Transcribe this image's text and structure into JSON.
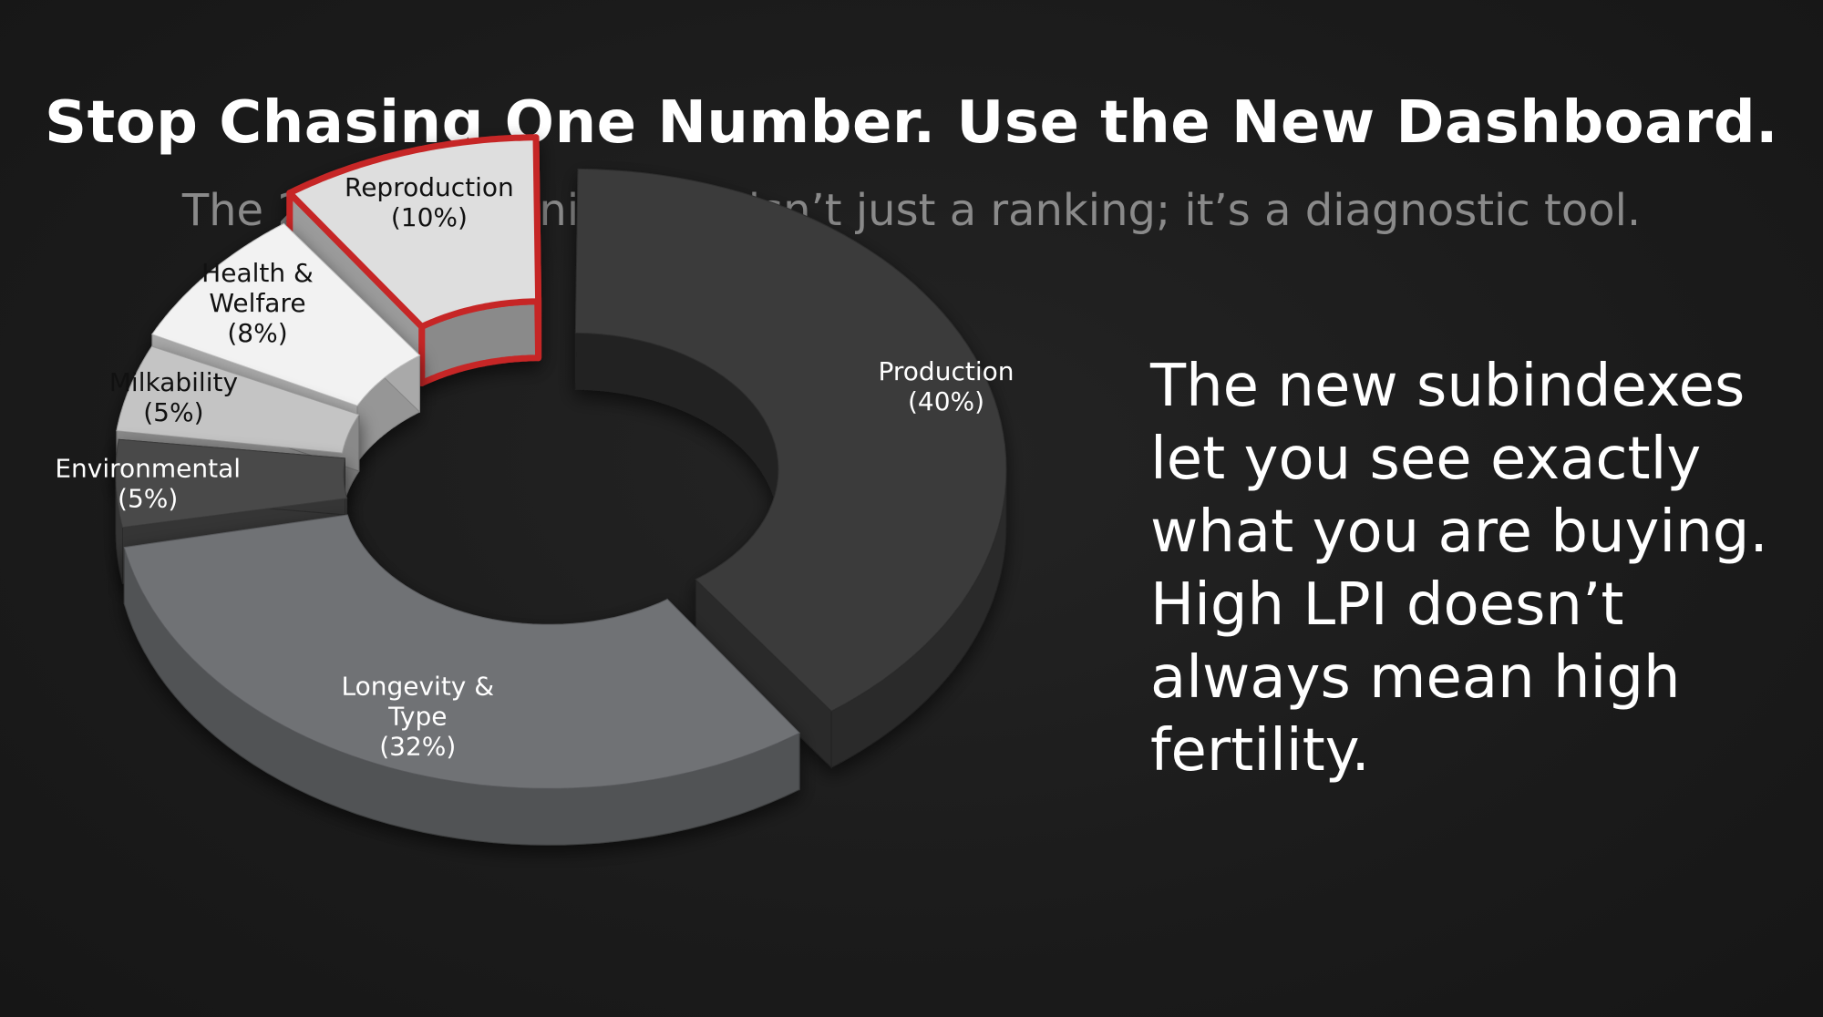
{
  "slide": {
    "title": "Stop Chasing One Number. Use the New Dashboard.",
    "subtitle": "The 2025 Modernized LPI isn’t just a ranking; it’s a diagnostic tool.",
    "body_text": "The new subindexes let you see exactly what you are buying. High LPI doesn’t always mean high fertility."
  },
  "chart_data": {
    "type": "pie",
    "style": "3d-exploded-donut",
    "categories": [
      "Production",
      "Longevity & Type",
      "Environmental",
      "Milkability",
      "Health & Welfare",
      "Reproduction"
    ],
    "values": [
      40,
      32,
      5,
      5,
      8,
      10
    ],
    "labels": [
      [
        "Production",
        "(40%)"
      ],
      [
        "Longevity &",
        "Type",
        "(32%)"
      ],
      [
        "Environmental",
        "(5%)"
      ],
      [
        "Milkability",
        "(5%)"
      ],
      [
        "Health &",
        "Welfare",
        "(8%)"
      ],
      [
        "Reproduction",
        "(10%)"
      ]
    ],
    "colors": [
      "#3a3a3a",
      "#707275",
      "#4a4a4a",
      "#c4c4c4",
      "#f2f2f2",
      "#dedede"
    ],
    "label_colors": [
      "#ffffff",
      "#ffffff",
      "#ffffff",
      "#111111",
      "#111111",
      "#111111"
    ],
    "highlight": "Reproduction",
    "highlight_color": "#c62828"
  }
}
